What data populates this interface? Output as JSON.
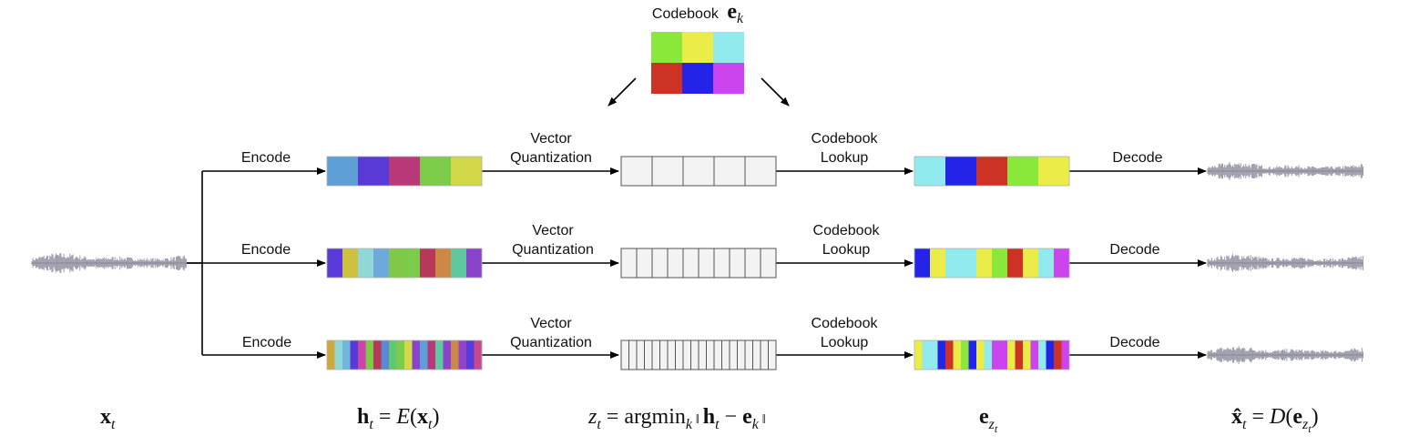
{
  "codebook": {
    "title": "Codebook",
    "symbol": "e",
    "index": "k",
    "colors": [
      "#8ae83a",
      "#ecec48",
      "#90eaee",
      "#cc3324",
      "#2424e8",
      "#cc44ee"
    ]
  },
  "stage_labels": {
    "encode": "Encode",
    "vq_line1": "Vector",
    "vq_line2": "Quantization",
    "lookup_line1": "Codebook",
    "lookup_line2": "Lookup",
    "decode": "Decode"
  },
  "rows": [
    {
      "h_colors": [
        "#5f9fd8",
        "#5a3ad6",
        "#b8387a",
        "#7ccc4a",
        "#d2d848"
      ],
      "z_cells": 5,
      "e_colors": [
        "#90eaee",
        "#2424e8",
        "#cc3324",
        "#8ae83a",
        "#ecec48"
      ]
    },
    {
      "h_colors": [
        "#5a3ad6",
        "#cfc040",
        "#90d8d8",
        "#6fa8dc",
        "#80c848",
        "#7ccc4a",
        "#b8385a",
        "#cc8844",
        "#60c8a0",
        "#8a44cc"
      ],
      "z_cells": 10,
      "e_colors": [
        "#2424e8",
        "#ecec48",
        "#90eaee",
        "#90eaee",
        "#ecec48",
        "#8ae83a",
        "#cc3324",
        "#ecec48",
        "#90eaee",
        "#cc44ee"
      ]
    },
    {
      "h_colors": [
        "#cfa840",
        "#90d8d8",
        "#6fb8dc",
        "#5a3ad6",
        "#cc44aa",
        "#80c848",
        "#b8385a",
        "#5a8ad6",
        "#60c870",
        "#7ccc4a",
        "#d2d848",
        "#8a44cc",
        "#5f9fd8",
        "#b8387a",
        "#60c8a0",
        "#8a44cc",
        "#cc8844",
        "#8e44cc",
        "#5a3ad6",
        "#c84890"
      ],
      "z_cells": 20,
      "e_colors": [
        "#ecec48",
        "#90eaee",
        "#90eaee",
        "#2424e8",
        "#cc3324",
        "#ecec48",
        "#8ae83a",
        "#2424e8",
        "#ecec48",
        "#90eaee",
        "#cc44ee",
        "#cc44ee",
        "#ecec48",
        "#cc3324",
        "#ecec48",
        "#cc44ee",
        "#90eaee",
        "#2424e8",
        "#cc3324",
        "#cc44ee"
      ]
    }
  ],
  "formulas": {
    "x": {
      "base": "x",
      "sub": "t"
    },
    "h": {
      "base": "h",
      "sub": "t",
      "eq": " = ",
      "func": "E",
      "open": "(",
      "arg": "x",
      "argsub": "t",
      "close": ")"
    },
    "z": {
      "base": "z",
      "sub": "t",
      "eq": " = argmin",
      "minsub": "k",
      "bar1": " ‖ ",
      "h": "h",
      "hsub": "t",
      "minus": " − ",
      "e": "e",
      "esub": "k",
      "bar2": " ‖"
    },
    "ez": {
      "base": "e",
      "sub": "z",
      "subsub": "t"
    },
    "xhat": {
      "base": "x̂",
      "sub": "t",
      "eq": " = ",
      "func": "D",
      "open": "(",
      "arg": "e",
      "argsub": "z",
      "argsubsub": "t",
      "close": ")"
    }
  },
  "waveform_color": "#9a9aa8"
}
